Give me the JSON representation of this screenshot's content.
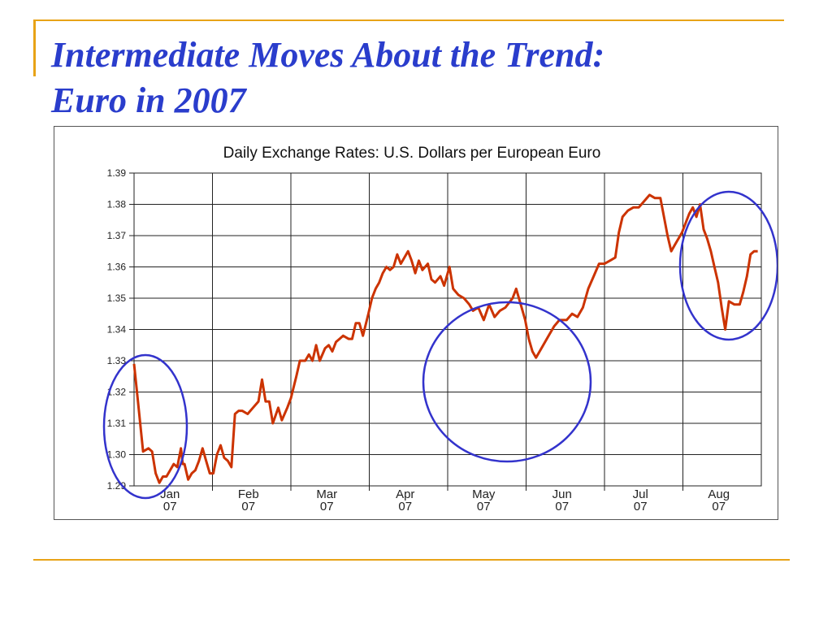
{
  "slide": {
    "title_line1": "Intermediate Moves About the Trend:",
    "title_line2": "Euro in 2007",
    "accent_color": "#e8a317",
    "title_color": "#2a3dcc"
  },
  "chart_data": {
    "type": "line",
    "title": "Daily Exchange Rates: U.S. Dollars per European Euro",
    "xlabel": "",
    "ylabel": "",
    "ylim": [
      1.29,
      1.39
    ],
    "yticks": [
      "1.39",
      "1.38",
      "1.37",
      "1.36",
      "1.35",
      "1.34",
      "1.33",
      "1.32",
      "1.31",
      "1.30",
      "1.29"
    ],
    "xticks": [
      {
        "month": "Jan",
        "year": "07"
      },
      {
        "month": "Feb",
        "year": "07"
      },
      {
        "month": "Mar",
        "year": "07"
      },
      {
        "month": "Apr",
        "year": "07"
      },
      {
        "month": "May",
        "year": "07"
      },
      {
        "month": "Jun",
        "year": "07"
      },
      {
        "month": "Jul",
        "year": "07"
      },
      {
        "month": "Aug",
        "year": "07"
      }
    ],
    "grid": true,
    "line_color": "#cc3300",
    "highlight_color": "#3333cc",
    "series": [
      {
        "values": [
          [
            0.0,
            1.329
          ],
          [
            0.1,
            1.318
          ],
          [
            0.25,
            1.301
          ],
          [
            0.4,
            1.302
          ],
          [
            0.5,
            1.301
          ],
          [
            0.6,
            1.294
          ],
          [
            0.7,
            1.291
          ],
          [
            0.8,
            1.293
          ],
          [
            0.9,
            1.293
          ],
          [
            1.0,
            1.295
          ],
          [
            1.1,
            1.297
          ],
          [
            1.2,
            1.296
          ],
          [
            1.3,
            1.302
          ],
          [
            1.35,
            1.297
          ],
          [
            1.4,
            1.297
          ],
          [
            1.5,
            1.292
          ],
          [
            1.6,
            1.294
          ],
          [
            1.7,
            1.295
          ],
          [
            1.8,
            1.298
          ],
          [
            1.9,
            1.302
          ],
          [
            2.0,
            1.298
          ],
          [
            2.1,
            1.294
          ],
          [
            2.2,
            1.294
          ],
          [
            2.3,
            1.3
          ],
          [
            2.4,
            1.303
          ],
          [
            2.5,
            1.299
          ],
          [
            2.6,
            1.298
          ],
          [
            2.7,
            1.296
          ],
          [
            2.8,
            1.313
          ],
          [
            2.9,
            1.314
          ],
          [
            3.0,
            1.314
          ],
          [
            3.15,
            1.313
          ],
          [
            3.3,
            1.315
          ],
          [
            3.45,
            1.317
          ],
          [
            3.55,
            1.324
          ],
          [
            3.65,
            1.317
          ],
          [
            3.75,
            1.317
          ],
          [
            3.85,
            1.31
          ],
          [
            4.0,
            1.315
          ],
          [
            4.1,
            1.311
          ],
          [
            4.25,
            1.315
          ],
          [
            4.35,
            1.318
          ],
          [
            4.5,
            1.325
          ],
          [
            4.6,
            1.33
          ],
          [
            4.75,
            1.33
          ],
          [
            4.85,
            1.332
          ],
          [
            4.95,
            1.33
          ],
          [
            5.05,
            1.335
          ],
          [
            5.15,
            1.33
          ],
          [
            5.3,
            1.334
          ],
          [
            5.4,
            1.335
          ],
          [
            5.5,
            1.333
          ],
          [
            5.6,
            1.336
          ],
          [
            5.7,
            1.337
          ],
          [
            5.8,
            1.338
          ],
          [
            5.95,
            1.337
          ],
          [
            6.05,
            1.337
          ],
          [
            6.15,
            1.342
          ],
          [
            6.25,
            1.342
          ],
          [
            6.35,
            1.338
          ],
          [
            6.5,
            1.345
          ],
          [
            6.6,
            1.35
          ],
          [
            6.7,
            1.353
          ],
          [
            6.8,
            1.355
          ],
          [
            6.9,
            1.358
          ],
          [
            7.0,
            1.36
          ],
          [
            7.1,
            1.359
          ],
          [
            7.2,
            1.36
          ],
          [
            7.3,
            1.364
          ],
          [
            7.4,
            1.361
          ],
          [
            7.5,
            1.363
          ],
          [
            7.6,
            1.365
          ],
          [
            7.7,
            1.362
          ],
          [
            7.8,
            1.358
          ],
          [
            7.9,
            1.362
          ],
          [
            8.0,
            1.359
          ],
          [
            8.15,
            1.361
          ],
          [
            8.25,
            1.356
          ],
          [
            8.35,
            1.355
          ],
          [
            8.5,
            1.357
          ],
          [
            8.6,
            1.354
          ],
          [
            8.75,
            1.36
          ],
          [
            8.85,
            1.353
          ],
          [
            9.0,
            1.351
          ],
          [
            9.15,
            1.35
          ],
          [
            9.3,
            1.348
          ],
          [
            9.4,
            1.346
          ],
          [
            9.55,
            1.347
          ],
          [
            9.7,
            1.343
          ],
          [
            9.85,
            1.348
          ],
          [
            10.0,
            1.344
          ],
          [
            10.15,
            1.346
          ],
          [
            10.3,
            1.347
          ],
          [
            10.5,
            1.35
          ],
          [
            10.6,
            1.353
          ],
          [
            10.75,
            1.347
          ],
          [
            10.85,
            1.343
          ],
          [
            10.95,
            1.337
          ],
          [
            11.05,
            1.333
          ],
          [
            11.15,
            1.331
          ],
          [
            11.3,
            1.334
          ],
          [
            11.5,
            1.338
          ],
          [
            11.65,
            1.341
          ],
          [
            11.8,
            1.343
          ],
          [
            12.0,
            1.343
          ],
          [
            12.15,
            1.345
          ],
          [
            12.3,
            1.344
          ],
          [
            12.45,
            1.347
          ],
          [
            12.6,
            1.353
          ],
          [
            12.75,
            1.357
          ],
          [
            12.9,
            1.361
          ],
          [
            13.05,
            1.361
          ],
          [
            13.2,
            1.362
          ],
          [
            13.35,
            1.363
          ],
          [
            13.45,
            1.371
          ],
          [
            13.55,
            1.376
          ],
          [
            13.7,
            1.378
          ],
          [
            13.85,
            1.379
          ],
          [
            14.0,
            1.379
          ],
          [
            14.15,
            1.381
          ],
          [
            14.3,
            1.383
          ],
          [
            14.45,
            1.382
          ],
          [
            14.6,
            1.382
          ],
          [
            14.7,
            1.376
          ],
          [
            14.8,
            1.37
          ],
          [
            14.9,
            1.365
          ],
          [
            15.0,
            1.367
          ],
          [
            15.1,
            1.369
          ],
          [
            15.2,
            1.371
          ],
          [
            15.3,
            1.374
          ],
          [
            15.4,
            1.377
          ],
          [
            15.5,
            1.379
          ],
          [
            15.6,
            1.376
          ],
          [
            15.7,
            1.38
          ],
          [
            15.8,
            1.372
          ],
          [
            15.9,
            1.369
          ],
          [
            16.0,
            1.365
          ],
          [
            16.1,
            1.36
          ],
          [
            16.2,
            1.355
          ],
          [
            16.3,
            1.347
          ],
          [
            16.4,
            1.34
          ],
          [
            16.5,
            1.349
          ],
          [
            16.65,
            1.348
          ],
          [
            16.8,
            1.348
          ],
          [
            16.9,
            1.352
          ],
          [
            17.0,
            1.357
          ],
          [
            17.1,
            1.364
          ],
          [
            17.2,
            1.365
          ],
          [
            17.3,
            1.365
          ]
        ]
      }
    ],
    "highlights": [
      {
        "label": "January dip"
      },
      {
        "label": "May–June pullback"
      },
      {
        "label": "August drop"
      }
    ]
  }
}
